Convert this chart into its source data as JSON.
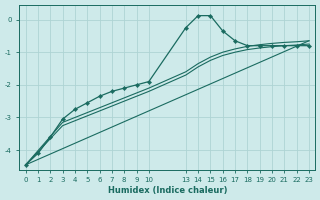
{
  "xlabel": "Humidex (Indice chaleur)",
  "background_color": "#ceeaea",
  "grid_color": "#aed4d4",
  "line_color": "#1a6b60",
  "xlim": [
    -0.5,
    23.5
  ],
  "ylim": [
    -4.6,
    0.45
  ],
  "yticks": [
    0,
    -1,
    -2,
    -3,
    -4
  ],
  "series_with_markers": {
    "x": [
      0,
      1,
      2,
      3,
      4,
      5,
      6,
      7,
      8,
      9,
      10,
      13,
      14,
      15,
      16,
      17,
      18,
      19,
      20,
      21,
      22,
      23
    ],
    "y": [
      -4.45,
      -4.1,
      -3.6,
      -3.05,
      -2.75,
      -2.55,
      -2.35,
      -2.2,
      -2.1,
      -2.0,
      -1.9,
      -0.25,
      0.12,
      0.12,
      -0.35,
      -0.65,
      -0.8,
      -0.8,
      -0.8,
      -0.8,
      -0.8,
      -0.8
    ]
  },
  "series_plain": [
    {
      "x": [
        0,
        3,
        5,
        7,
        10,
        13,
        14,
        15,
        16,
        17,
        18,
        19,
        20,
        21,
        22,
        23
      ],
      "y": [
        -4.45,
        -3.15,
        -2.85,
        -2.55,
        -2.1,
        -1.6,
        -1.35,
        -1.15,
        -1.0,
        -0.9,
        -0.82,
        -0.77,
        -0.73,
        -0.7,
        -0.68,
        -0.65
      ]
    },
    {
      "x": [
        0,
        3,
        5,
        7,
        10,
        13,
        14,
        15,
        16,
        17,
        18,
        19,
        20,
        21,
        22,
        23
      ],
      "y": [
        -4.45,
        -3.25,
        -2.95,
        -2.65,
        -2.2,
        -1.7,
        -1.45,
        -1.25,
        -1.1,
        -1.0,
        -0.92,
        -0.87,
        -0.83,
        -0.8,
        -0.78,
        -0.75
      ]
    },
    {
      "x": [
        0,
        23
      ],
      "y": [
        -4.45,
        -0.65
      ]
    }
  ]
}
